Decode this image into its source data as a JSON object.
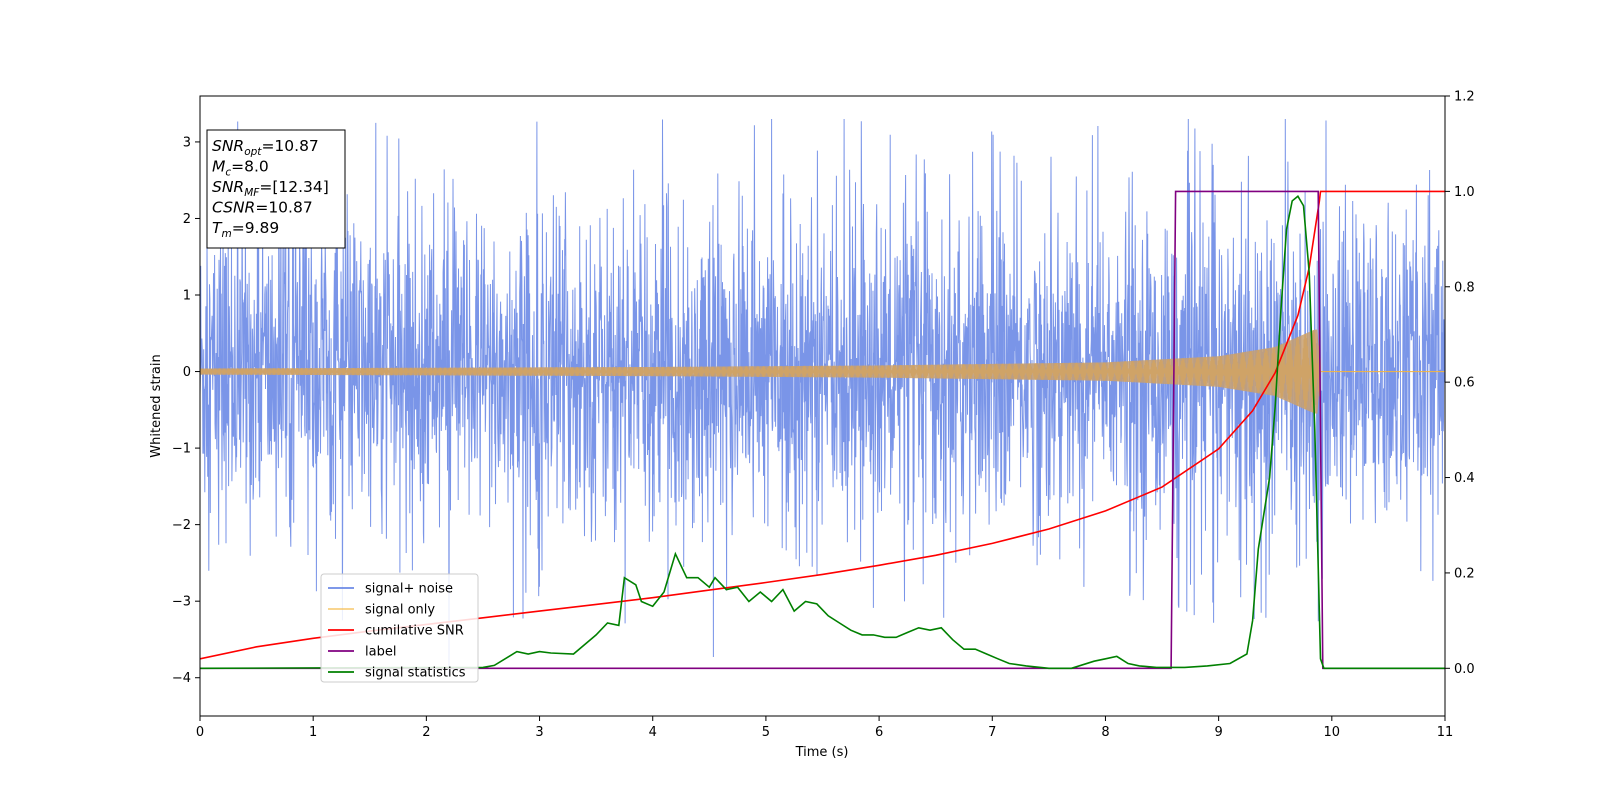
{
  "chart_data": {
    "type": "line",
    "xlabel": "Time (s)",
    "ylabel": "Whitened strain",
    "xlim": [
      0,
      11
    ],
    "ylim": [
      -4.5,
      3.6
    ],
    "y2lim": [
      -0.1,
      1.2
    ],
    "xticks": [
      "0",
      "1",
      "2",
      "3",
      "4",
      "5",
      "6",
      "7",
      "8",
      "9",
      "10",
      "11"
    ],
    "yticks": [
      "−4",
      "−3",
      "−2",
      "−1",
      "0",
      "1",
      "2",
      "3"
    ],
    "y2ticks": [
      "0.0",
      "0.2",
      "0.4",
      "0.6",
      "0.8",
      "1.0",
      "1.2"
    ],
    "legend_position": "lower-left",
    "info_box": [
      {
        "sym": "SNR",
        "sub": "opt",
        "value": "=10.87"
      },
      {
        "sym": "M",
        "sub": "c",
        "value": "=8.0"
      },
      {
        "sym": "SNR",
        "sub": "MF",
        "value": "=[12.34]"
      },
      {
        "sym": "CSNR",
        "sub": "",
        "value": "=10.87"
      },
      {
        "sym": "T",
        "sub": "m",
        "value": "=9.89"
      }
    ],
    "series": [
      {
        "name": "signal+ noise",
        "color": "#6b8ae6",
        "axis": "left",
        "kind": "noise",
        "band": [
          -1.6,
          1.6
        ],
        "spike_max": 3.3,
        "spike_min": -4.2
      },
      {
        "name": "signal only",
        "color": "#f5b53b",
        "axis": "left",
        "kind": "chirp",
        "envelope": [
          [
            0,
            0.04
          ],
          [
            4,
            0.06
          ],
          [
            6,
            0.08
          ],
          [
            8,
            0.12
          ],
          [
            9,
            0.2
          ],
          [
            9.5,
            0.32
          ],
          [
            9.85,
            0.55
          ],
          [
            9.89,
            0.55
          ],
          [
            9.9,
            0
          ]
        ]
      },
      {
        "name": "cumilative SNR",
        "color": "#ff0000",
        "axis": "right",
        "x": [
          0,
          0.5,
          1,
          1.5,
          2,
          2.5,
          3,
          3.5,
          4,
          4.5,
          5,
          5.5,
          6,
          6.5,
          7,
          7.5,
          8,
          8.5,
          9,
          9.3,
          9.5,
          9.7,
          9.8,
          9.89,
          9.9,
          11
        ],
        "y": [
          0.02,
          0.045,
          0.063,
          0.078,
          0.092,
          0.106,
          0.12,
          0.134,
          0.148,
          0.164,
          0.18,
          0.197,
          0.216,
          0.237,
          0.262,
          0.292,
          0.33,
          0.38,
          0.46,
          0.54,
          0.62,
          0.74,
          0.84,
          0.98,
          1.0,
          1.0
        ]
      },
      {
        "name": "label",
        "color": "#800080",
        "axis": "right",
        "x": [
          0,
          8.58,
          8.62,
          9.88,
          9.92,
          11
        ],
        "y": [
          0,
          0,
          1,
          1,
          0,
          0
        ]
      },
      {
        "name": "signal statistics",
        "color": "#008000",
        "axis": "right",
        "x": [
          0,
          2.5,
          2.6,
          2.8,
          2.9,
          3.0,
          3.1,
          3.3,
          3.5,
          3.6,
          3.7,
          3.75,
          3.85,
          3.9,
          4.0,
          4.1,
          4.2,
          4.3,
          4.4,
          4.5,
          4.55,
          4.65,
          4.75,
          4.85,
          4.95,
          5.05,
          5.15,
          5.25,
          5.35,
          5.45,
          5.55,
          5.65,
          5.75,
          5.85,
          5.95,
          6.05,
          6.15,
          6.25,
          6.35,
          6.45,
          6.55,
          6.65,
          6.75,
          6.85,
          6.95,
          7.05,
          7.15,
          7.3,
          7.5,
          7.7,
          7.9,
          8.0,
          8.1,
          8.2,
          8.3,
          8.45,
          8.55,
          8.7,
          8.9,
          9.1,
          9.25,
          9.3,
          9.35,
          9.45,
          9.5,
          9.55,
          9.6,
          9.65,
          9.7,
          9.75,
          9.8,
          9.85,
          9.9,
          9.93,
          11
        ],
        "y": [
          0.0,
          0.002,
          0.006,
          0.035,
          0.03,
          0.035,
          0.032,
          0.03,
          0.07,
          0.095,
          0.09,
          0.19,
          0.175,
          0.14,
          0.13,
          0.16,
          0.24,
          0.19,
          0.19,
          0.17,
          0.19,
          0.165,
          0.17,
          0.14,
          0.16,
          0.14,
          0.165,
          0.12,
          0.14,
          0.135,
          0.11,
          0.095,
          0.08,
          0.07,
          0.07,
          0.065,
          0.065,
          0.075,
          0.085,
          0.08,
          0.085,
          0.06,
          0.04,
          0.04,
          0.03,
          0.02,
          0.01,
          0.005,
          0.0,
          0.0,
          0.015,
          0.02,
          0.025,
          0.01,
          0.005,
          0.002,
          0.002,
          0.002,
          0.005,
          0.01,
          0.03,
          0.1,
          0.25,
          0.4,
          0.55,
          0.75,
          0.92,
          0.98,
          0.99,
          0.97,
          0.83,
          0.5,
          0.02,
          0.0,
          0.0
        ]
      }
    ]
  }
}
